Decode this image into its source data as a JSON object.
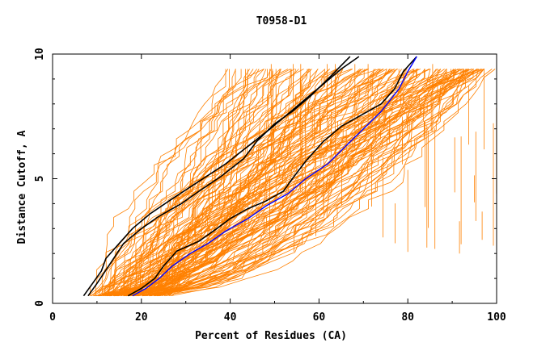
{
  "chart_data": {
    "type": "line",
    "title": "T0958-D1",
    "xlabel": "Percent of Residues (CA)",
    "ylabel": "Distance Cutoff, A",
    "xlim": [
      0,
      100
    ],
    "ylim": [
      0,
      10
    ],
    "xticks": [
      0,
      20,
      40,
      60,
      80,
      100
    ],
    "yticks": [
      0,
      5,
      10
    ],
    "grid": false,
    "legend": "none",
    "colors": {
      "background_models": "#ff8000",
      "highlight_black": "#000000",
      "highlight_blue": "#0000ff",
      "axes": "#000000"
    },
    "series": [
      {
        "values": [
          [
            7,
            0.3
          ],
          [
            9,
            0.8
          ],
          [
            11,
            1.3
          ],
          [
            12,
            1.8
          ],
          [
            15,
            2.4
          ],
          [
            18,
            3.0
          ],
          [
            22,
            3.6
          ],
          [
            27,
            4.2
          ],
          [
            33,
            4.9
          ],
          [
            39,
            5.6
          ],
          [
            44,
            6.3
          ],
          [
            49,
            7.0
          ],
          [
            53,
            7.6
          ],
          [
            57,
            8.2
          ],
          [
            61,
            8.8
          ],
          [
            65,
            9.4
          ],
          [
            69,
            9.9
          ]
        ]
      },
      {
        "values": [
          [
            8,
            0.3
          ],
          [
            10,
            0.8
          ],
          [
            13,
            1.6
          ],
          [
            16,
            2.4
          ],
          [
            20,
            3.0
          ],
          [
            24,
            3.5
          ],
          [
            29,
            4.0
          ],
          [
            33,
            4.5
          ],
          [
            38,
            5.1
          ],
          [
            43,
            5.8
          ],
          [
            46,
            6.5
          ],
          [
            50,
            7.2
          ],
          [
            54,
            7.7
          ],
          [
            58,
            8.3
          ],
          [
            62,
            9.0
          ],
          [
            67,
            9.9
          ]
        ]
      },
      {
        "values": [
          [
            17,
            0.3
          ],
          [
            20,
            0.6
          ],
          [
            23,
            1.0
          ],
          [
            25,
            1.5
          ],
          [
            28,
            2.1
          ],
          [
            33,
            2.5
          ],
          [
            37,
            3.0
          ],
          [
            40,
            3.4
          ],
          [
            44,
            3.8
          ],
          [
            48,
            4.1
          ],
          [
            52,
            4.5
          ],
          [
            54,
            5.0
          ],
          [
            57,
            5.7
          ],
          [
            61,
            6.5
          ],
          [
            65,
            7.1
          ],
          [
            70,
            7.6
          ],
          [
            74,
            8.0
          ],
          [
            77,
            8.6
          ],
          [
            79,
            9.3
          ],
          [
            82,
            9.9
          ]
        ]
      }
    ],
    "highlight_blue": {
      "values": [
        [
          18,
          0.3
        ],
        [
          21,
          0.6
        ],
        [
          24,
          1.0
        ],
        [
          27,
          1.5
        ],
        [
          31,
          2.0
        ],
        [
          35,
          2.4
        ],
        [
          39,
          2.9
        ],
        [
          44,
          3.4
        ],
        [
          48,
          3.9
        ],
        [
          53,
          4.4
        ],
        [
          57,
          5.0
        ],
        [
          62,
          5.6
        ],
        [
          66,
          6.3
        ],
        [
          70,
          7.0
        ],
        [
          74,
          7.7
        ],
        [
          78,
          8.6
        ],
        [
          80,
          9.3
        ],
        [
          82,
          9.9
        ]
      ]
    },
    "background_model_count": 150
  }
}
